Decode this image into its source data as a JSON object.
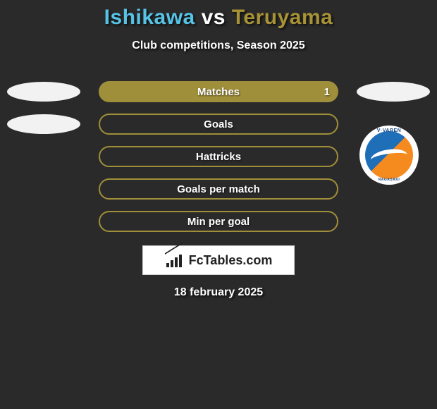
{
  "background_color": "#2a2a2a",
  "title": {
    "left": "Ishikawa",
    "vs": "vs",
    "right": "Teruyama",
    "left_color": "#56c3e6",
    "vs_color": "#ffffff",
    "right_color": "#a79236",
    "fontsize": 30
  },
  "subtitle": "Club competitions, Season 2025",
  "left_shape_color": "#f2f2f2",
  "right_shape_color": "#f2f2f2",
  "bars": [
    {
      "label": "Matches",
      "style": "filled",
      "fill_color": "#a08f3a",
      "border_color": "#a08f3a",
      "value_right": "1",
      "show_left_shape": true,
      "show_right_shape": true
    },
    {
      "label": "Goals",
      "style": "border",
      "fill_color": null,
      "border_color": "#a08f3a",
      "value_right": null,
      "show_left_shape": true,
      "show_right_shape": false
    },
    {
      "label": "Hattricks",
      "style": "border",
      "fill_color": null,
      "border_color": "#a08f3a",
      "value_right": null,
      "show_left_shape": false,
      "show_right_shape": false
    },
    {
      "label": "Goals per match",
      "style": "border",
      "fill_color": null,
      "border_color": "#a08f3a",
      "value_right": null,
      "show_left_shape": false,
      "show_right_shape": false
    },
    {
      "label": "Min per goal",
      "style": "border",
      "fill_color": null,
      "border_color": "#a08f3a",
      "value_right": null,
      "show_left_shape": false,
      "show_right_shape": false
    }
  ],
  "crest": {
    "bg_color": "#ffffff",
    "top_text": "V·VAREN",
    "bottom_text": "NAGASAKI",
    "blue": "#1e6fb8",
    "orange": "#f58a1f"
  },
  "brand": {
    "text": "FcTables.com",
    "box_bg": "#ffffff",
    "text_color": "#222222"
  },
  "date": "18 february 2025"
}
